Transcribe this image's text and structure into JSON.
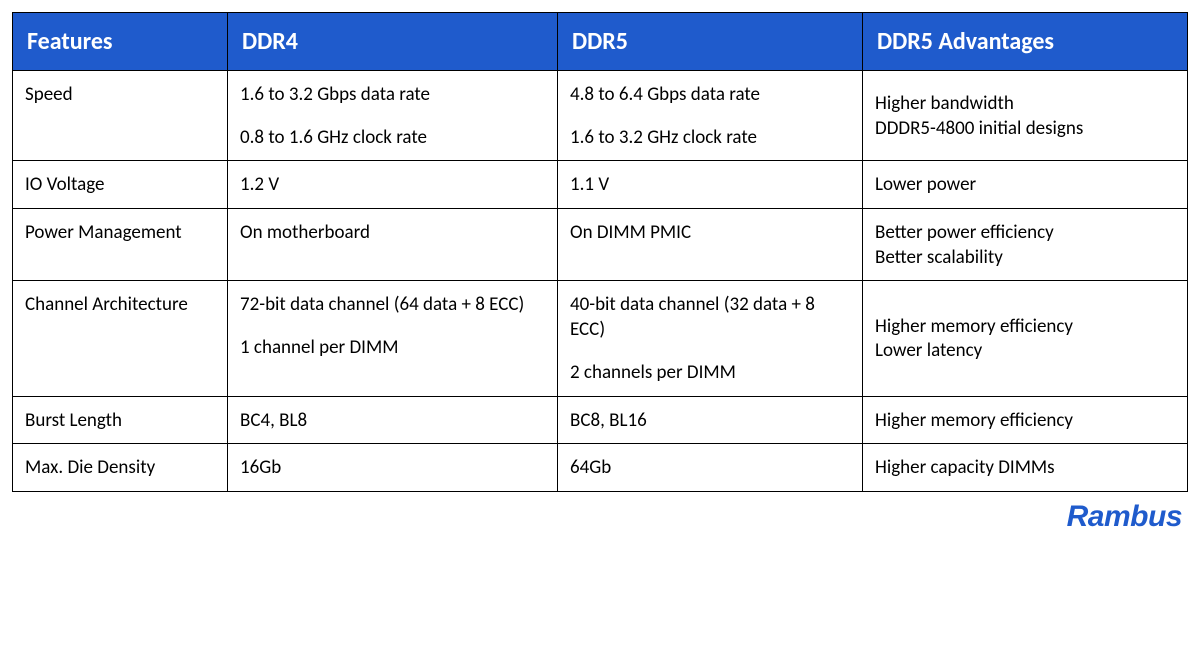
{
  "table": {
    "header_bg": "#1f5bcc",
    "header_fg": "#ffffff",
    "border_color": "#000000",
    "columns": [
      "Features",
      "DDR4",
      "DDR5",
      "DDR5 Advantages"
    ],
    "rows": [
      {
        "feature": "Speed",
        "ddr4": [
          "1.6 to 3.2 Gbps data rate",
          "0.8 to 1.6 GHz clock rate"
        ],
        "ddr5": [
          "4.8 to 6.4 Gbps data rate",
          "1.6 to 3.2 GHz clock rate"
        ],
        "adv": [
          "Higher bandwidth",
          "DDDR5-4800 initial designs"
        ]
      },
      {
        "feature": "IO Voltage",
        "ddr4": [
          "1.2 V"
        ],
        "ddr5": [
          "1.1 V"
        ],
        "adv": [
          "Lower power"
        ]
      },
      {
        "feature": "Power Management",
        "ddr4": [
          "On motherboard"
        ],
        "ddr5": [
          "On DIMM PMIC"
        ],
        "adv": [
          "Better power efficiency",
          "Better scalability"
        ]
      },
      {
        "feature": "Channel Architecture",
        "ddr4": [
          "72-bit data channel (64 data + 8 ECC)",
          "1 channel per DIMM"
        ],
        "ddr5": [
          "40-bit data channel (32 data + 8 ECC)",
          "2 channels per DIMM"
        ],
        "adv": [
          "Higher memory efficiency",
          "Lower latency"
        ]
      },
      {
        "feature": "Burst Length",
        "ddr4": [
          "BC4, BL8"
        ],
        "ddr5": [
          "BC8, BL16"
        ],
        "adv": [
          "Higher memory efficiency"
        ]
      },
      {
        "feature": "Max. Die Density",
        "ddr4": [
          "16Gb"
        ],
        "ddr5": [
          "64Gb"
        ],
        "adv": [
          "Higher capacity DIMMs"
        ]
      }
    ]
  },
  "logo_text": "Rambus",
  "logo_color": "#1f5bcc"
}
